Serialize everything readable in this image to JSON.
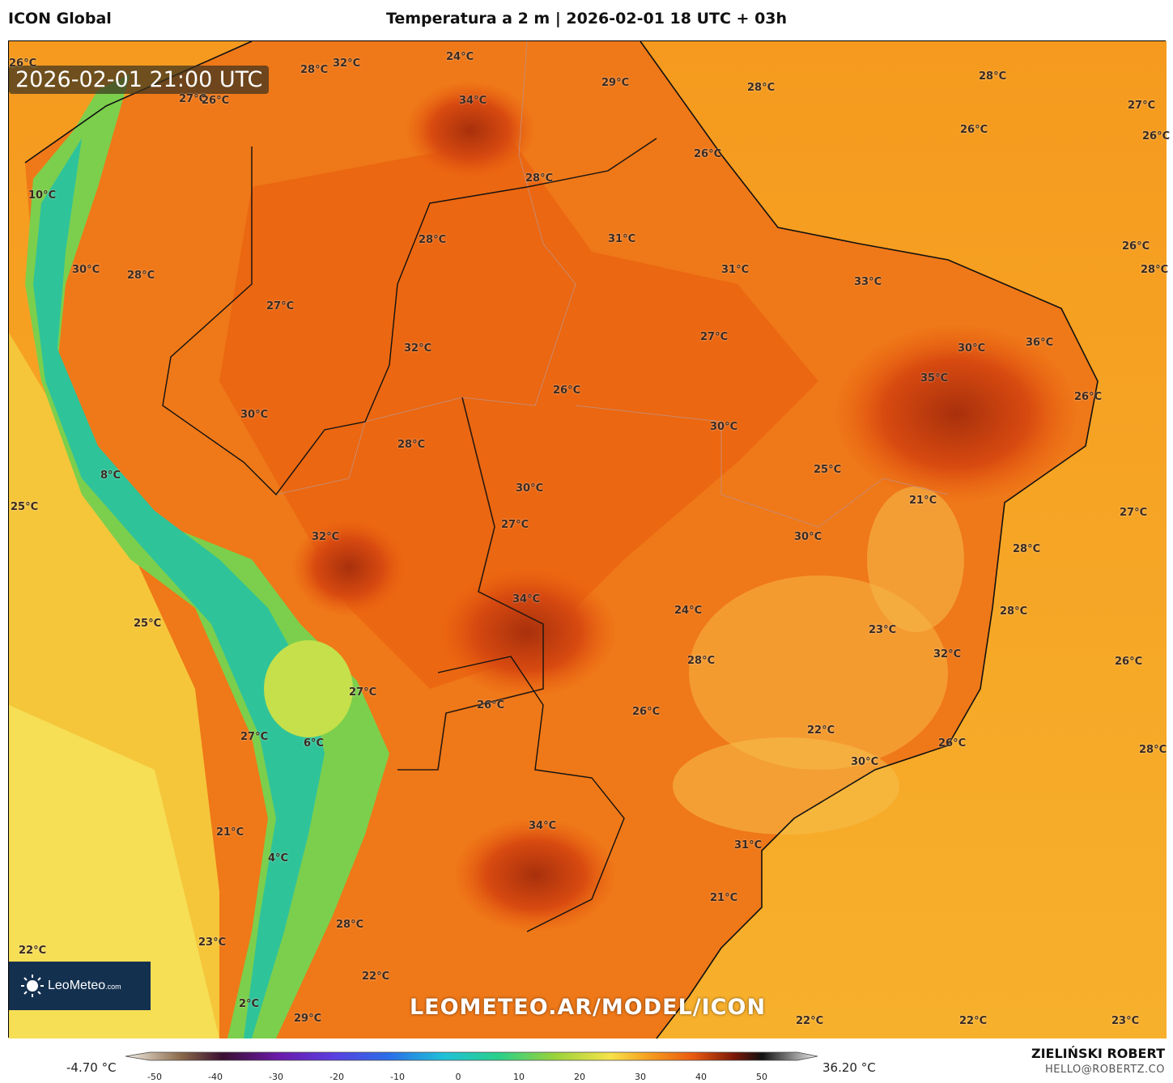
{
  "header": {
    "model": "ICON Global",
    "title": "Temperatura a 2 m | 2026-02-01 18 UTC + 03h"
  },
  "map": {
    "valid_time": "2026-02-01 21:00 UTC",
    "website": "LEOMETEO.AR/MODEL/ICON",
    "logo": {
      "brand": "LeoMeteo",
      "suffix": ".com"
    },
    "labels": [
      "26°C",
      "32°C",
      "24°C",
      "28°C",
      "27°C",
      "26°C",
      "34°C",
      "29°C",
      "28°C",
      "28°C",
      "27°C",
      "26°C",
      "26°C",
      "26°C",
      "28°C",
      "10°C",
      "28°C",
      "31°C",
      "26°C",
      "30°C",
      "28°C",
      "31°C",
      "33°C",
      "28°C",
      "27°C",
      "27°C",
      "32°C",
      "36°C",
      "30°C",
      "35°C",
      "26°C",
      "26°C",
      "30°C",
      "30°C",
      "28°C",
      "25°C",
      "8°C",
      "21°C",
      "25°C",
      "30°C",
      "27°C",
      "32°C",
      "30°C",
      "28°C",
      "24°C",
      "34°C",
      "27°C",
      "25°C",
      "23°C",
      "28°C",
      "32°C",
      "28°C",
      "26°C",
      "27°C",
      "26°C",
      "26°C",
      "27°C",
      "22°C",
      "26°C",
      "6°C",
      "30°C",
      "28°C",
      "34°C",
      "21°C",
      "31°C",
      "4°C",
      "21°C",
      "28°C",
      "22°C",
      "23°C",
      "22°C",
      "2°C",
      "29°C",
      "22°C",
      "22°C",
      "23°C"
    ]
  },
  "colorbar": {
    "min_label": "-4.70 °C",
    "max_label": "36.20 °C",
    "ticks": [
      "-50",
      "-40",
      "-30",
      "-20",
      "-10",
      "0",
      "10",
      "20",
      "30",
      "40",
      "50"
    ]
  },
  "footer": {
    "author": "ZIELIŃSKI ROBERT",
    "email": "HELLO@ROBERTZ.CO"
  },
  "colors": {
    "ocean": "#f4a52a",
    "land_hot": "#ef6a10",
    "andes": "#3cbf8a",
    "cold": "#2fd6b0"
  }
}
